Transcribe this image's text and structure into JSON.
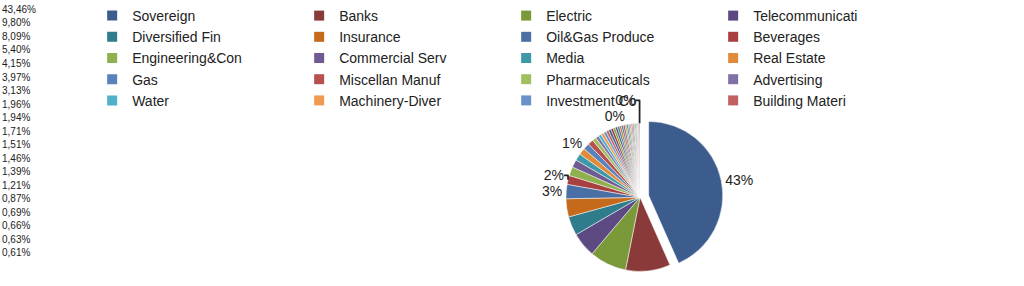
{
  "chart_data": {
    "type": "pie",
    "legend": "top",
    "data_labels": true,
    "categories": [
      "Sovereign",
      "Banks",
      "Electric",
      "Telecommunicati",
      "Diversified Fin",
      "Insurance",
      "Oil&Gas Produce",
      "Beverages",
      "Engineering&Con",
      "Commercial Serv",
      "Media",
      "Real Estate",
      "Gas",
      "Miscellan Manuf",
      "Pharmaceuticals",
      "Advertising",
      "Water",
      "Machinery-Diver",
      "Investment Co",
      "Building Materi",
      null,
      null,
      null,
      null,
      null,
      null,
      null,
      null,
      null,
      null,
      null,
      null,
      null,
      null,
      null,
      null,
      null,
      null,
      null,
      null
    ],
    "values": [
      43.46,
      9.8,
      8.09,
      5.4,
      4.15,
      3.97,
      3.13,
      1.96,
      1.94,
      1.71,
      1.51,
      1.46,
      1.39,
      1.21,
      0.87,
      0.69,
      0.66,
      0.63,
      0.61,
      0.58,
      0.55,
      0.52,
      0.5,
      0.48,
      0.45,
      0.43,
      0.41,
      0.39,
      0.37,
      0.35,
      0.33,
      0.31,
      0.3,
      0.28,
      0.26,
      0.25,
      0.23,
      0.22,
      0.2,
      0.18
    ],
    "value_labels": [
      "43,46%",
      "9,80%",
      "8,09%",
      "5,40%",
      "4,15%",
      "3,97%",
      "3,13%",
      "1,96%",
      "1,94%",
      "1,71%",
      "1,51%",
      "1,46%",
      "1,39%",
      "1,21%",
      "0,87%",
      "0,69%",
      "0,66%",
      "0,63%",
      "0,61%",
      null,
      null,
      null,
      null,
      null,
      null,
      null,
      null,
      null,
      null,
      null,
      null,
      null,
      null,
      null,
      null,
      null,
      null,
      null,
      null,
      null
    ],
    "slice_labels": [
      "43%",
      null,
      null,
      null,
      null,
      null,
      "3%",
      "2%",
      null,
      null,
      null,
      null,
      "1%",
      null,
      null,
      null,
      null,
      null,
      null,
      null,
      null,
      null,
      null,
      null,
      null,
      null,
      null,
      null,
      null,
      null,
      "0%",
      null,
      null,
      null,
      null,
      null,
      null,
      null,
      null,
      "0%"
    ],
    "colors": [
      "#3b5c8c",
      "#8b3a3a",
      "#7a9a3a",
      "#5e4a82",
      "#2f7c8c",
      "#c46a1a",
      "#4a6fa5",
      "#a84040",
      "#90b050",
      "#6f5a92",
      "#3f98a8",
      "#e08a3a",
      "#5a82ba",
      "#b85050",
      "#a0c060",
      "#8070a8",
      "#50b0c8",
      "#f09a50",
      "#6a92c8",
      "#c06060",
      "#3b5c8c",
      "#8b3a3a",
      "#7a9a3a",
      "#5e4a82",
      "#2f7c8c",
      "#c46a1a",
      "#4a6fa5",
      "#a84040",
      "#90b050",
      "#6f5a92",
      "#3f98a8",
      "#e08a3a",
      "#5a82ba",
      "#b85050",
      "#a0c060",
      "#8070a8",
      "#50b0c8",
      "#f09a50",
      "#6a92c8",
      "#c06060"
    ]
  }
}
